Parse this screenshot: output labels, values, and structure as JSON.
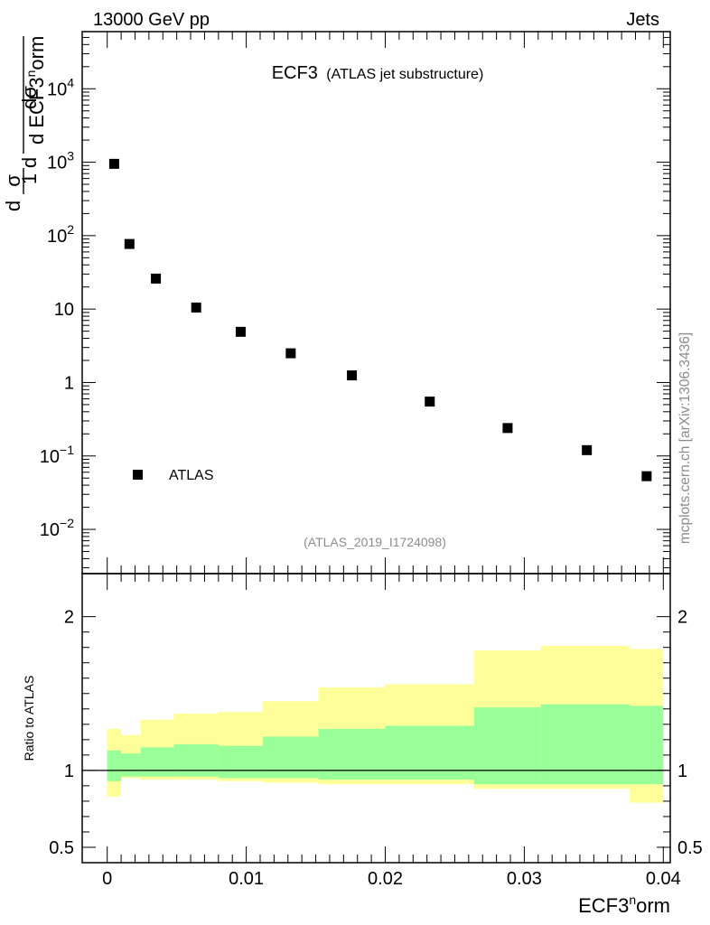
{
  "header": {
    "energy_label": "13000 GeV pp",
    "process_label": "Jets"
  },
  "side_label": "mcplots.cern.ch [arXiv:1306.3436]",
  "chart_data": [
    {
      "type": "scatter",
      "title": "ECF3",
      "subtitle": "(ATLAS jet substructure)",
      "analysis_label": "(ATLAS_2019_I1724098)",
      "ylabel_parts": [
        "1",
        "σ",
        "d",
        "dσ",
        "d ECF3",
        "n",
        "orm"
      ],
      "yscale": "log",
      "ylim": [
        0.0025,
        60000
      ],
      "xlim": [
        -0.0018,
        0.0405
      ],
      "y_tick_labels": [
        {
          "value": 0.01,
          "base": "10",
          "exp": "−2"
        },
        {
          "value": 0.1,
          "base": "10",
          "exp": "−1"
        },
        {
          "value": 1,
          "base": "1",
          "exp": ""
        },
        {
          "value": 10,
          "base": "10",
          "exp": ""
        },
        {
          "value": 100,
          "base": "10",
          "exp": "2"
        },
        {
          "value": 1000,
          "base": "10",
          "exp": "3"
        },
        {
          "value": 10000,
          "base": "10",
          "exp": "4"
        }
      ],
      "legend": {
        "position": "bottom-left",
        "entries": [
          "ATLAS"
        ]
      },
      "series": [
        {
          "name": "ATLAS",
          "color": "#000000",
          "marker": "square",
          "x": [
            0.0005,
            0.0016,
            0.0035,
            0.0064,
            0.0096,
            0.0132,
            0.0176,
            0.0232,
            0.0288,
            0.0345,
            0.0388
          ],
          "y": [
            950,
            77,
            26,
            10.5,
            4.9,
            2.5,
            1.25,
            0.55,
            0.24,
            0.12,
            0.053
          ]
        }
      ]
    },
    {
      "type": "area",
      "ylabel": "Ratio to ATLAS",
      "xlabel_parts": [
        "ECF3",
        "n",
        "orm"
      ],
      "xlim": [
        -0.0018,
        0.0405
      ],
      "ylim": [
        0.4,
        2.28
      ],
      "x_ticks": [
        0,
        0.01,
        0.02,
        0.03,
        0.04
      ],
      "x_tick_labels": [
        "0",
        "0.01",
        "0.02",
        "0.03",
        "0.04"
      ],
      "y_ticks": [
        0.5,
        1,
        2
      ],
      "y_tick_labels": [
        "0.5",
        "1",
        "2"
      ],
      "reference_line": 1,
      "bands": {
        "bin_edges": [
          0,
          0.001,
          0.0024,
          0.0048,
          0.008,
          0.0112,
          0.0152,
          0.02,
          0.0264,
          0.0312,
          0.0376,
          0.04
        ],
        "stat_color": "#99ff99",
        "total_color": "#ffff99",
        "stat_upper": [
          1.13,
          1.11,
          1.15,
          1.17,
          1.16,
          1.22,
          1.27,
          1.29,
          1.41,
          1.43,
          1.42
        ],
        "stat_lower": [
          0.93,
          0.96,
          0.96,
          0.96,
          0.95,
          0.95,
          0.94,
          0.94,
          0.91,
          0.91,
          0.91
        ],
        "total_upper": [
          1.27,
          1.23,
          1.33,
          1.37,
          1.38,
          1.45,
          1.54,
          1.56,
          1.78,
          1.81,
          1.79
        ],
        "total_lower": [
          0.83,
          0.95,
          0.94,
          0.94,
          0.93,
          0.92,
          0.91,
          0.91,
          0.88,
          0.88,
          0.79
        ]
      }
    }
  ]
}
